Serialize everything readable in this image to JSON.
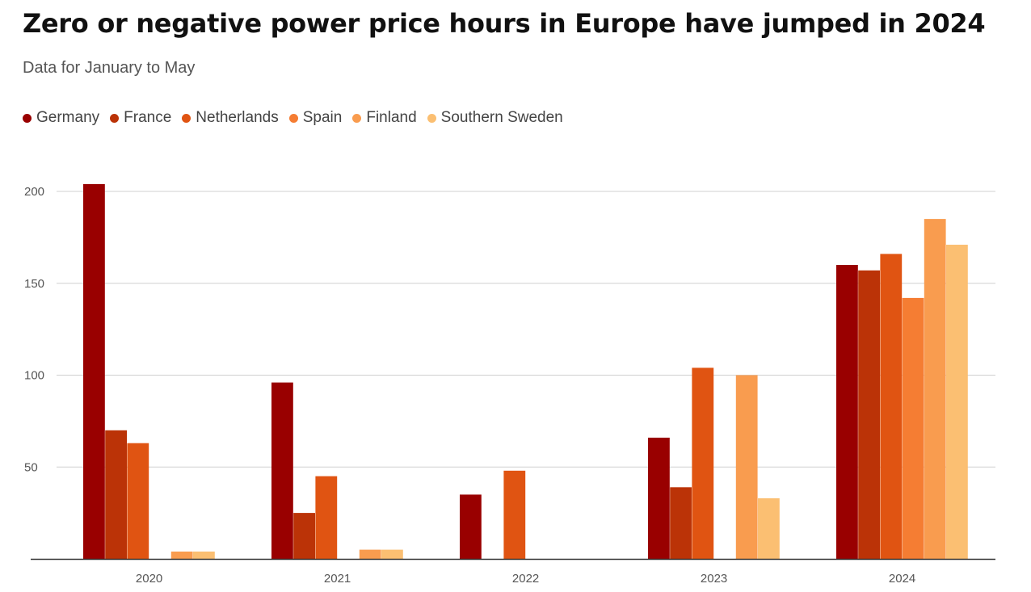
{
  "chart_data": {
    "type": "bar",
    "title": "Zero or negative power price hours in Europe have jumped in 2024",
    "subtitle": "Data for January to May",
    "xlabel": "",
    "ylabel": "",
    "categories": [
      "2020",
      "2021",
      "2022",
      "2023",
      "2024"
    ],
    "series": [
      {
        "name": "Germany",
        "color": "#990000",
        "values": [
          204,
          96,
          35,
          66,
          160
        ]
      },
      {
        "name": "France",
        "color": "#bb3307",
        "values": [
          70,
          25,
          0,
          39,
          157
        ]
      },
      {
        "name": "Netherlands",
        "color": "#e05412",
        "values": [
          63,
          45,
          48,
          104,
          166
        ]
      },
      {
        "name": "Spain",
        "color": "#f57d33",
        "values": [
          0,
          0,
          0,
          0,
          142
        ]
      },
      {
        "name": "Finland",
        "color": "#f99c4f",
        "values": [
          4,
          5,
          0,
          100,
          185
        ]
      },
      {
        "name": "Southern Sweden",
        "color": "#fbbf72",
        "values": [
          4,
          5,
          0,
          33,
          171
        ]
      }
    ],
    "ylim": [
      0,
      210
    ],
    "yticks": [
      50,
      100,
      150,
      200
    ],
    "grid": true,
    "legend": "top-left"
  }
}
